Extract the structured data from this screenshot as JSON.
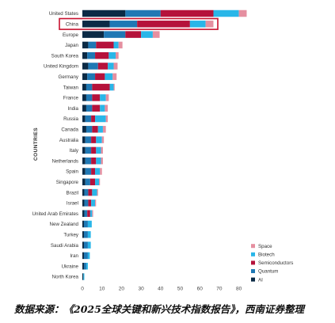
{
  "chart_data": {
    "type": "bar",
    "orientation": "horizontal",
    "stacked": true,
    "title": "",
    "xlabel": "",
    "ylabel": "COUNTRIES",
    "xlim": [
      0,
      85
    ],
    "x_ticks": [
      0,
      10,
      20,
      30,
      40,
      50,
      60,
      70,
      80
    ],
    "grid": false,
    "legend_position": "bottom-right",
    "highlighted_category": "China",
    "highlight_color": "#c8102e",
    "categories": [
      "United States",
      "China",
      "Europe",
      "Japan",
      "South Korea",
      "United Kingdom",
      "Germany",
      "Taiwan",
      "France",
      "India",
      "Russia",
      "Canada",
      "Australia",
      "Italy",
      "Netherlands",
      "Spain",
      "Singapore",
      "Brazil",
      "Israel",
      "United Arab Emirates",
      "New Zealand",
      "Turkey",
      "Saudi Arabia",
      "Iran",
      "Ukraine",
      "North Korea"
    ],
    "series": [
      {
        "name": "AI",
        "color": "#0b2a45",
        "values": [
          22,
          14,
          11,
          3,
          2.5,
          3,
          2.5,
          2,
          2,
          2,
          1.5,
          2,
          1.5,
          1.5,
          1.5,
          1.5,
          1.5,
          1,
          1,
          1,
          0.8,
          0.8,
          0.8,
          0.8,
          0.8,
          0.5
        ]
      },
      {
        "name": "Quantum",
        "color": "#1f78b4",
        "values": [
          18,
          14,
          11,
          4,
          4,
          5,
          4,
          3,
          3,
          3,
          3,
          3,
          3,
          3,
          3,
          3,
          2.5,
          2,
          2,
          1.5,
          2,
          2,
          2,
          2,
          1.2,
          0
        ]
      },
      {
        "name": "Semiconductors",
        "color": "#b5123b",
        "values": [
          27,
          27,
          8,
          9,
          7,
          5,
          5,
          9,
          4,
          4,
          2,
          3,
          2.5,
          2.5,
          2.5,
          2,
          2.5,
          2,
          1.5,
          1.5,
          0,
          0,
          0,
          0,
          0,
          0
        ]
      },
      {
        "name": "Biotech",
        "color": "#29b6e8",
        "values": [
          13,
          8,
          6,
          2.5,
          3.5,
          3,
          4,
          2,
          3,
          2.5,
          5.5,
          2.5,
          3,
          2.5,
          2.5,
          2.5,
          2,
          2.5,
          2,
          1,
          2,
          1.5,
          1.5,
          1,
          0.8,
          0.5
        ]
      },
      {
        "name": "Space",
        "color": "#e58fa0",
        "values": [
          4,
          4,
          3.5,
          2,
          1.5,
          2,
          2,
          0.5,
          1.5,
          1.5,
          1,
          1.5,
          1,
          1,
          1,
          1,
          0.5,
          0.5,
          0.5,
          0.5,
          0,
          0,
          0,
          0,
          0,
          0
        ]
      }
    ],
    "legend_order": [
      "Space",
      "Biotech",
      "Semiconductors",
      "Quantum",
      "AI"
    ]
  },
  "caption": "数据来源：《2025全球关键和新兴技术指数报告》，西南证券整理"
}
